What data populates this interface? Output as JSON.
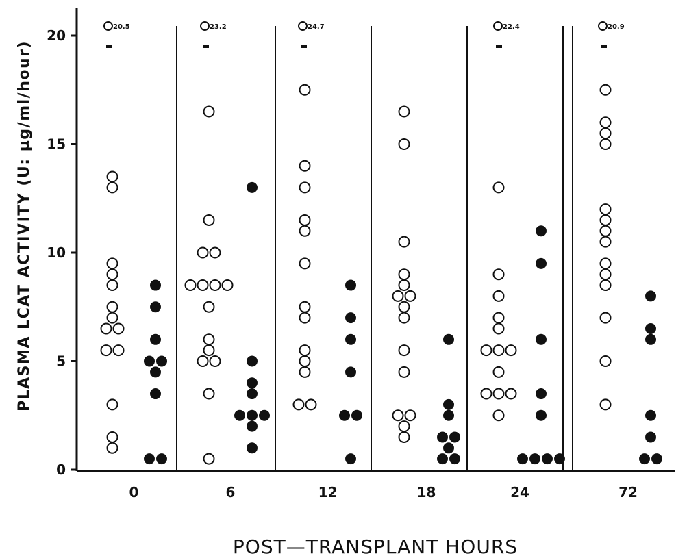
{
  "chart_data": {
    "type": "scatter",
    "xlabel": "POST—TRANSPLANT HOURS",
    "ylabel": "PLASMA LCAT ACTIVITY (U: μg/ml/hour)",
    "ylim": [
      0,
      20
    ],
    "yticks": [
      0,
      5,
      10,
      15,
      20
    ],
    "ytick_labels": [
      "0",
      "5",
      "10",
      "15",
      "20"
    ],
    "grid": false,
    "legend": "none",
    "colors": {
      "open": "#ffffff",
      "filled": "#111111",
      "stroke": "#111111"
    },
    "categories": [
      "0",
      "6",
      "12",
      "18",
      "24",
      "72"
    ],
    "groups": [
      {
        "category": "0",
        "open_outlier": {
          "label": "20.5"
        },
        "open": [
          13.5,
          13,
          9.5,
          9,
          8.5,
          7.5,
          7,
          6.5,
          6.5,
          5.5,
          5.5,
          3,
          1.5,
          1
        ],
        "filled": [
          8.5,
          7.5,
          6,
          5,
          5,
          4.5,
          3.5,
          0.5,
          0.5
        ]
      },
      {
        "category": "6",
        "open_outlier": {
          "label": "23.2"
        },
        "open": [
          16.5,
          11.5,
          10,
          10,
          8.5,
          8.5,
          8.5,
          8.5,
          7.5,
          6,
          5.5,
          5,
          5,
          3.5,
          0.5
        ],
        "filled": [
          13,
          5,
          4,
          3.5,
          2.5,
          2.5,
          2.5,
          2,
          1
        ]
      },
      {
        "category": "12",
        "open_outlier": {
          "label": "24.7"
        },
        "open": [
          17.5,
          14,
          13,
          11.5,
          11,
          9.5,
          7.5,
          7,
          5.5,
          5,
          4.5,
          3,
          3
        ],
        "filled": [
          8.5,
          7,
          6,
          4.5,
          2.5,
          2.5,
          0.5
        ]
      },
      {
        "category": "18",
        "open": [
          16.5,
          15,
          10.5,
          9,
          8.5,
          8,
          8,
          7.5,
          7,
          5.5,
          4.5,
          2.5,
          2.5,
          2,
          1.5
        ],
        "filled": [
          6,
          3,
          2.5,
          1.5,
          1.5,
          1,
          0.5,
          0.5
        ]
      },
      {
        "category": "24",
        "open_outlier": {
          "label": "22.4"
        },
        "open": [
          13,
          9,
          8,
          7,
          6.5,
          5.5,
          5.5,
          5.5,
          4.5,
          3.5,
          3.5,
          3.5,
          2.5
        ],
        "filled": [
          11,
          9.5,
          6,
          3.5,
          2.5,
          0.5,
          0.5,
          0.5,
          0.5
        ]
      },
      {
        "category": "72",
        "open_outlier": {
          "label": "20.9"
        },
        "open": [
          17.5,
          16,
          15.5,
          15,
          12,
          11.5,
          11,
          10.5,
          9.5,
          9,
          8.5,
          7,
          5,
          3
        ],
        "filled": [
          8,
          6.5,
          6,
          2.5,
          1.5,
          0.5,
          0.5
        ]
      }
    ]
  }
}
